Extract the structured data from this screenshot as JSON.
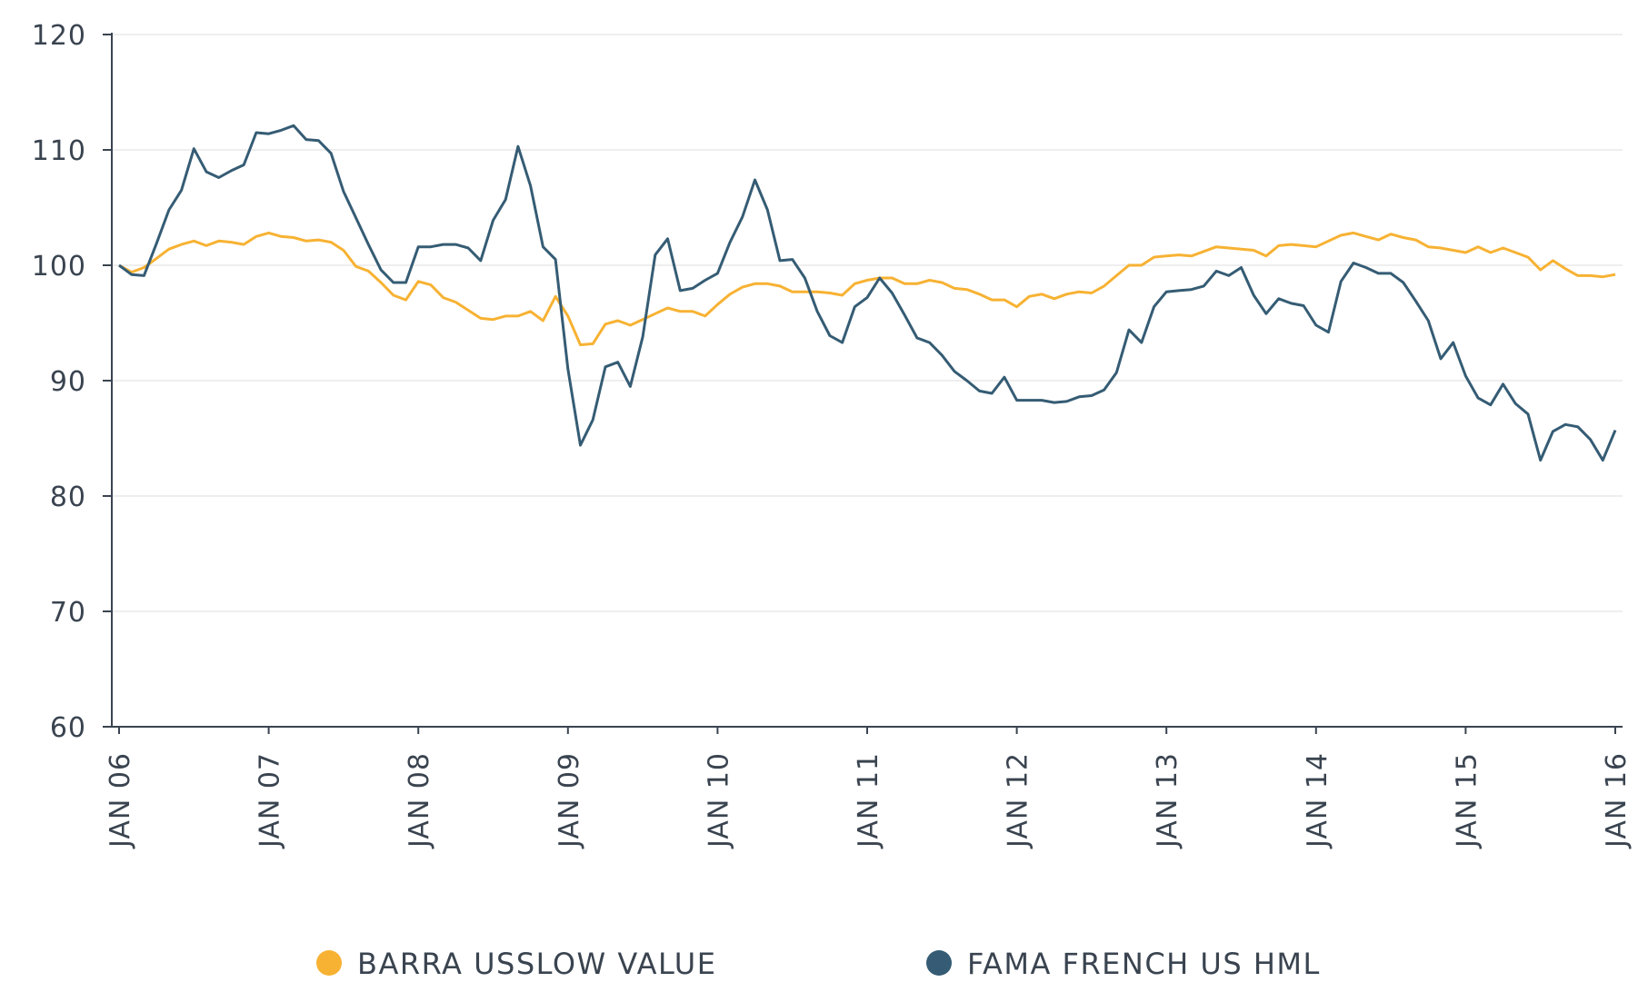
{
  "chart_data": {
    "type": "line",
    "title": "",
    "xlabel": "",
    "ylabel": "",
    "ylim": [
      60,
      120
    ],
    "y_ticks": [
      "60",
      "70",
      "80",
      "90",
      "100",
      "110",
      "120"
    ],
    "x_tick_labels": [
      "JAN 06",
      "JAN 07",
      "JAN 08",
      "JAN 09",
      "JAN 10",
      "JAN 11",
      "JAN 12",
      "JAN 13",
      "JAN 14",
      "JAN 15",
      "JAN 16"
    ],
    "x_frequency": "monthly",
    "x_start": "JAN 06",
    "grid": "horizontal",
    "legend_position": "bottom",
    "series": [
      {
        "name": "BARRA USSLOW VALUE",
        "color": "#F7B233",
        "values": [
          100.0,
          99.4,
          99.8,
          100.6,
          101.4,
          101.8,
          102.1,
          101.7,
          102.1,
          102.0,
          101.8,
          102.5,
          102.8,
          102.5,
          102.4,
          102.1,
          102.2,
          102.0,
          101.3,
          99.9,
          99.5,
          98.5,
          97.4,
          97.0,
          98.6,
          98.3,
          97.2,
          96.8,
          96.1,
          95.4,
          95.3,
          95.6,
          95.6,
          96.0,
          95.2,
          97.3,
          95.6,
          93.1,
          93.2,
          94.9,
          95.2,
          94.8,
          95.3,
          95.8,
          96.3,
          96.0,
          96.0,
          95.6,
          96.6,
          97.5,
          98.1,
          98.4,
          98.4,
          98.2,
          97.7,
          97.7,
          97.7,
          97.6,
          97.4,
          98.4,
          98.7,
          98.9,
          98.9,
          98.4,
          98.4,
          98.7,
          98.5,
          98.0,
          97.9,
          97.5,
          97.0,
          97.0,
          96.4,
          97.3,
          97.5,
          97.1,
          97.5,
          97.7,
          97.6,
          98.2,
          99.1,
          100.0,
          100.0,
          100.7,
          100.8,
          100.9,
          100.8,
          101.2,
          101.6,
          101.5,
          101.4,
          101.3,
          100.8,
          101.7,
          101.8,
          101.7,
          101.6,
          102.1,
          102.6,
          102.8,
          102.5,
          102.2,
          102.7,
          102.4,
          102.2,
          101.6,
          101.5,
          101.3,
          101.1,
          101.6,
          101.1,
          101.5,
          101.1,
          100.7,
          99.6,
          100.4,
          99.7,
          99.1,
          99.1,
          99.0,
          99.2
        ]
      },
      {
        "name": "FAMA FRENCH US HML",
        "color": "#355C74",
        "values": [
          100.0,
          99.2,
          99.1,
          101.9,
          104.8,
          106.5,
          110.1,
          108.1,
          107.6,
          108.2,
          108.7,
          111.5,
          111.4,
          111.7,
          112.1,
          110.9,
          110.8,
          109.7,
          106.4,
          104.1,
          101.8,
          99.6,
          98.5,
          98.5,
          101.6,
          101.6,
          101.8,
          101.8,
          101.5,
          100.4,
          103.9,
          105.7,
          110.3,
          106.9,
          101.6,
          100.5,
          91.0,
          84.4,
          86.6,
          91.2,
          91.6,
          89.5,
          93.8,
          100.9,
          102.3,
          97.8,
          98.0,
          98.7,
          99.3,
          102.0,
          104.2,
          107.4,
          104.8,
          100.4,
          100.5,
          98.9,
          96.0,
          93.9,
          93.3,
          96.4,
          97.2,
          98.9,
          97.6,
          95.7,
          93.7,
          93.3,
          92.2,
          90.8,
          90.0,
          89.1,
          88.9,
          90.3,
          88.3,
          88.3,
          88.3,
          88.1,
          88.2,
          88.6,
          88.7,
          89.2,
          90.7,
          94.4,
          93.3,
          96.4,
          97.7,
          97.8,
          97.9,
          98.2,
          99.5,
          99.1,
          99.8,
          97.4,
          95.8,
          97.1,
          96.7,
          96.5,
          94.8,
          94.2,
          98.6,
          100.2,
          99.8,
          99.3,
          99.3,
          98.5,
          96.9,
          95.2,
          91.9,
          93.3,
          90.4,
          88.5,
          87.9,
          89.7,
          88.0,
          87.1,
          83.1,
          85.6,
          86.2,
          86.0,
          84.9,
          83.1,
          85.7
        ]
      }
    ]
  }
}
